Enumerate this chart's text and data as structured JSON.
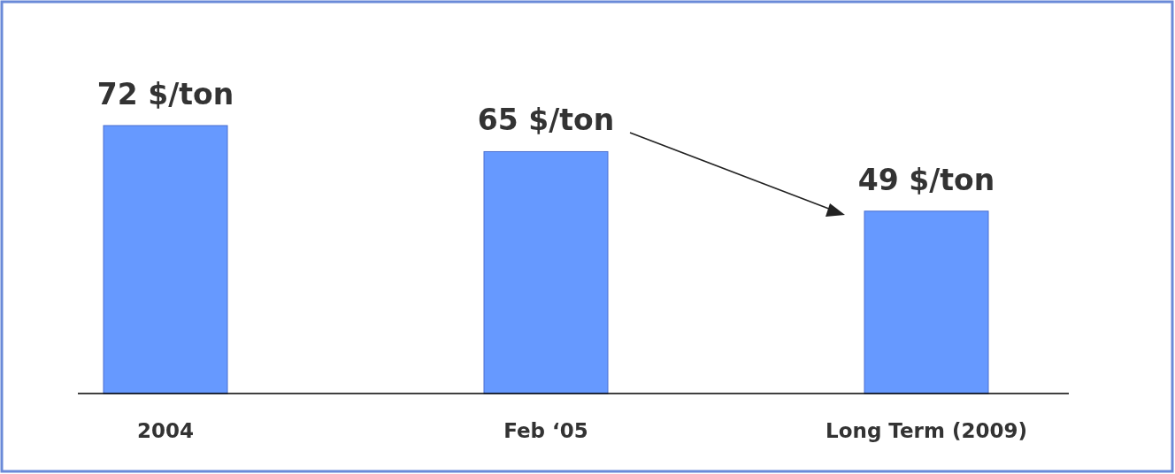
{
  "chart_data": {
    "type": "bar",
    "categories": [
      "2004",
      "Feb ‘05",
      "Long Term (2009)"
    ],
    "values": [
      72,
      65,
      49
    ],
    "color": "#6699ff",
    "value_labels": [
      "72 $/ton",
      "65 $/ton",
      "49 $/ton"
    ]
  }
}
